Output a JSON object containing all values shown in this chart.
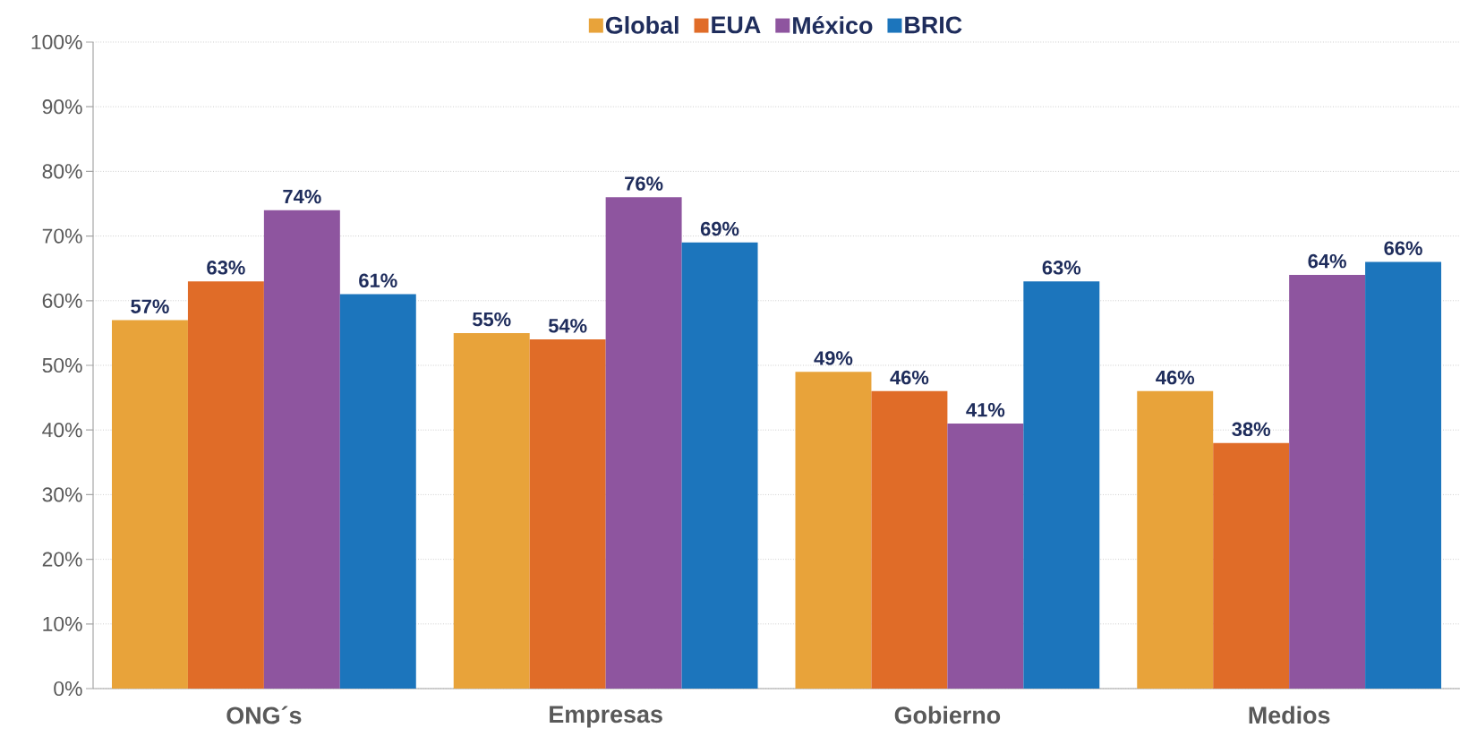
{
  "chart_data": {
    "type": "bar",
    "categories": [
      "ONG´s",
      "Empresas",
      "Gobierno",
      "Medios"
    ],
    "series": [
      {
        "name": "Global",
        "color": "#e8a33a",
        "values": [
          57,
          55,
          49,
          46
        ],
        "value_labels": [
          "57%",
          "55%",
          "49%",
          "46%"
        ]
      },
      {
        "name": "EUA",
        "color": "#e06c28",
        "values": [
          63,
          54,
          46,
          38
        ],
        "value_labels": [
          "63%",
          "54%",
          "46%",
          "38%"
        ]
      },
      {
        "name": "México",
        "color": "#8e559f",
        "values": [
          74,
          76,
          41,
          64
        ],
        "value_labels": [
          "74%",
          "76%",
          "41%",
          "64%"
        ]
      },
      {
        "name": "BRIC",
        "color": "#1c75bc",
        "values": [
          61,
          69,
          63,
          66
        ],
        "value_labels": [
          "61%",
          "69%",
          "63%",
          "66%"
        ]
      }
    ],
    "ylim": [
      0,
      100
    ],
    "yticks": [
      {
        "value": 0,
        "label": "0%"
      },
      {
        "value": 10,
        "label": "10%"
      },
      {
        "value": 20,
        "label": "20%"
      },
      {
        "value": 30,
        "label": "30%"
      },
      {
        "value": 40,
        "label": "40%"
      },
      {
        "value": 50,
        "label": "50%"
      },
      {
        "value": 60,
        "label": "60%"
      },
      {
        "value": 70,
        "label": "70%"
      },
      {
        "value": 80,
        "label": "80%"
      },
      {
        "value": 90,
        "label": "90%"
      },
      {
        "value": 100,
        "label": "100%"
      }
    ],
    "grid": "y",
    "legend": "top"
  }
}
